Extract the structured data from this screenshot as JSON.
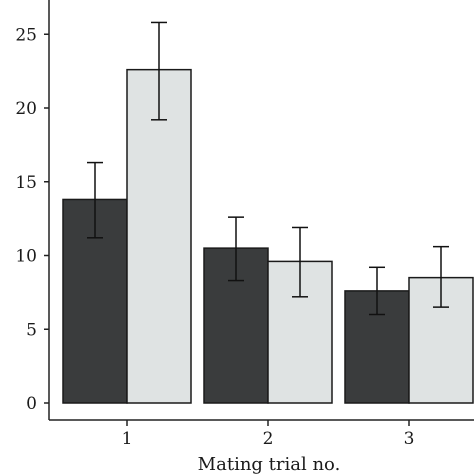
{
  "chart_data": {
    "type": "bar",
    "xlabel": "Mating trial no.",
    "ylabel": "",
    "categories": [
      "1",
      "2",
      "3"
    ],
    "ylim": [
      0,
      27
    ],
    "yticks": [
      0,
      5,
      10,
      15,
      20,
      25
    ],
    "series": [
      {
        "color": "#3a3c3d",
        "values": [
          13.8,
          10.5,
          7.6
        ],
        "err_low": [
          11.2,
          8.3,
          6.0
        ],
        "err_high": [
          16.3,
          12.6,
          9.2
        ]
      },
      {
        "color": "#dfe3e3",
        "values": [
          22.6,
          9.6,
          8.5
        ],
        "err_low": [
          19.2,
          7.2,
          6.5
        ],
        "err_high": [
          25.8,
          11.9,
          10.6
        ]
      }
    ],
    "grid": false,
    "legend": "none"
  }
}
